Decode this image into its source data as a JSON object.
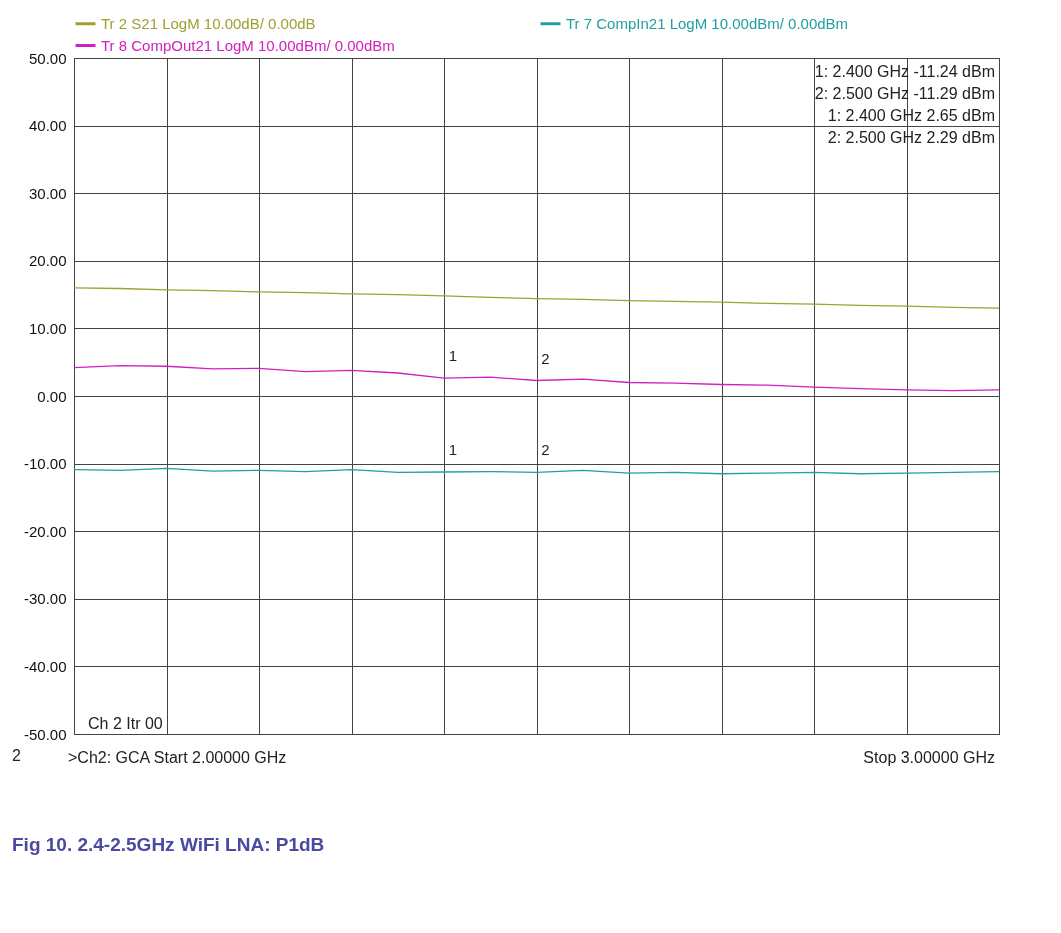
{
  "chart_data": {
    "type": "line",
    "title": "Fig 10.   2.4-2.5GHz WiFi LNA: P1dB",
    "categories": [
      null,
      null,
      null,
      null,
      null,
      null,
      null,
      null,
      null,
      null,
      null,
      null,
      null,
      null,
      null,
      null,
      null,
      null,
      null,
      null,
      null
    ],
    "series": [
      {
        "name": "Tr 2  S21 LogM 10.00dB/  0.00dB",
        "color": "#a0a030",
        "values": [
          16.0,
          15.9,
          15.7,
          15.6,
          15.4,
          15.3,
          15.1,
          15.0,
          14.8,
          14.6,
          14.4,
          14.3,
          14.1,
          14.0,
          13.9,
          13.7,
          13.6,
          13.4,
          13.3,
          13.1,
          13.0
        ]
      },
      {
        "name": "Tr 7  CompIn21 LogM 10.00dBm/  0.00dBm",
        "color": "#20a0a0",
        "values": [
          -10.9,
          -11.0,
          -10.7,
          -11.1,
          -11.0,
          -11.2,
          -10.9,
          -11.3,
          -11.24,
          -11.2,
          -11.29,
          -11.0,
          -11.4,
          -11.3,
          -11.5,
          -11.4,
          -11.3,
          -11.5,
          -11.4,
          -11.3,
          -11.2
        ]
      },
      {
        "name": "Tr 8  CompOut21 LogM 10.00dBm/  0.00dBm",
        "color": "#d020c0",
        "values": [
          4.2,
          4.5,
          4.4,
          4.0,
          4.1,
          3.6,
          3.8,
          3.4,
          2.65,
          2.8,
          2.29,
          2.5,
          2.0,
          1.9,
          1.7,
          1.6,
          1.3,
          1.1,
          0.9,
          0.8,
          0.9
        ]
      }
    ],
    "ylim": [
      -50,
      50
    ],
    "yticks": [
      {
        "value": -50,
        "label": "-50.00"
      },
      {
        "value": -40,
        "label": "-40.00"
      },
      {
        "value": -30,
        "label": "-30.00"
      },
      {
        "value": -20,
        "label": "-20.00"
      },
      {
        "value": -10,
        "label": "-10.00"
      },
      {
        "value": 0,
        "label": "0.00"
      },
      {
        "value": 10,
        "label": "10.00"
      },
      {
        "value": 20,
        "label": "20.00"
      },
      {
        "value": 30,
        "label": "30.00"
      },
      {
        "value": 40,
        "label": "40.00"
      },
      {
        "value": 50,
        "label": "50.00"
      }
    ],
    "tick_labels": "y",
    "grid": true,
    "legend": "top",
    "annotations": [
      "1:   2.400 GHz   -11.24 dBm",
      "2:   2.500 GHz   -11.29 dBm",
      "1:   2.400 GHz   2.65 dBm",
      "2:   2.500 GHz   2.29 dBm",
      "Ch 2  Itr 00",
      "2",
      ">Ch2: GCA Start  2.00000 GHz",
      "Stop  3.00000 GHz",
      {
        "text": "1",
        "y": -11.24
      },
      {
        "text": "2",
        "y": -11.29
      },
      {
        "text": "1",
        "y": 2.65
      },
      {
        "text": "2",
        "y": 2.29
      }
    ]
  }
}
